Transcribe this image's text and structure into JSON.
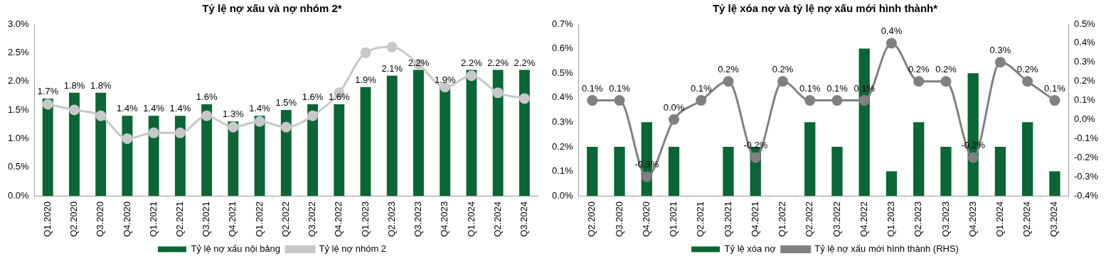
{
  "chart_data": [
    {
      "type": "bar",
      "title": "Tỷ lệ nợ xấu và nợ nhóm 2*",
      "categories": [
        "Q1.2020",
        "Q2.2020",
        "Q3.2020",
        "Q4.2020",
        "Q1.2021",
        "Q2.2021",
        "Q3.2021",
        "Q4.2021",
        "Q1.2022",
        "Q2.2022",
        "Q3.2022",
        "Q4.2022",
        "Q1.2023",
        "Q2.2023",
        "Q3.2023",
        "Q4.2023",
        "Q1.2024",
        "Q2.2024",
        "Q3.2024"
      ],
      "series": [
        {
          "name": "Tỷ lệ nợ xấu nội bảng",
          "color": "#0a6634",
          "values": [
            1.7,
            1.8,
            1.8,
            1.4,
            1.4,
            1.4,
            1.6,
            1.3,
            1.4,
            1.5,
            1.6,
            1.6,
            1.9,
            2.1,
            2.2,
            1.9,
            2.2,
            2.2,
            2.2
          ],
          "value_labels": [
            "1.7%",
            "1.8%",
            "1.8%",
            "1.4%",
            "1.4%",
            "1.4%",
            "1.6%",
            "1.3%",
            "1.4%",
            "1.5%",
            "1.6%",
            "1.6%",
            "1.9%",
            "2.1%",
            "2.2%",
            "1.9%",
            "2.2%",
            "2.2%",
            "2.2%"
          ]
        },
        {
          "name": "Tỷ lệ nợ nhóm 2",
          "type": "line",
          "color": "#c8c8c8",
          "values": [
            1.6,
            1.5,
            1.4,
            1.0,
            1.1,
            1.1,
            1.4,
            1.2,
            1.3,
            1.2,
            1.4,
            1.8,
            2.5,
            2.6,
            2.3,
            1.9,
            2.1,
            1.8,
            1.7
          ]
        }
      ],
      "ylim": [
        0,
        3
      ],
      "yticks": [
        {
          "value": 0,
          "label": "0.0%"
        },
        {
          "value": 0.5,
          "label": "0.5%"
        },
        {
          "value": 1,
          "label": "1.0%"
        },
        {
          "value": 1.5,
          "label": "1.5%"
        },
        {
          "value": 2,
          "label": "2.0%"
        },
        {
          "value": 2.5,
          "label": "2.5%"
        },
        {
          "value": 3,
          "label": "3.0%"
        }
      ],
      "grid": false,
      "legend": "bottom",
      "marker": "circle"
    },
    {
      "type": "bar",
      "title": "Tỷ lệ xóa nợ và tỷ lệ nợ xấu mới hình thành*",
      "categories": [
        "Q2.2020",
        "Q3.2020",
        "Q4.2020",
        "Q1.2021",
        "Q2.2021",
        "Q3.2021",
        "Q4.2021",
        "Q1.2022",
        "Q2.2022",
        "Q3.2022",
        "Q4.2022",
        "Q1.2023",
        "Q2.2023",
        "Q3.2023",
        "Q4.2023",
        "Q1.2024",
        "Q2.2024",
        "Q3.2024"
      ],
      "series": [
        {
          "name": "Tỷ lệ xóa nợ",
          "color": "#0a6634",
          "values": [
            0.2,
            0.2,
            0.3,
            0.2,
            0,
            0.2,
            0.2,
            0,
            0.3,
            0.2,
            0.6,
            0.1,
            0.3,
            0.2,
            0.5,
            0.2,
            0.3,
            0.1
          ]
        },
        {
          "name": "Tỷ lệ nợ xấu mới hình thành (RHS)",
          "type": "line",
          "axis": "y2",
          "color": "#808080",
          "values": [
            0.1,
            0.1,
            -0.3,
            0.0,
            0.1,
            0.2,
            -0.2,
            0.2,
            0.1,
            0.1,
            0.1,
            0.4,
            0.2,
            0.2,
            -0.2,
            0.3,
            0.2,
            0.1
          ],
          "value_labels": [
            "0.1%",
            "0.1%",
            "-0.3%",
            "0.0%",
            "0.1%",
            "0.2%",
            "-0.2%",
            "0.2%",
            "0.1%",
            "0.1%",
            "0.1%",
            "0.4%",
            "0.2%",
            "0.2%",
            "-0.2%",
            "0.3%",
            "0.2%",
            "0.1%"
          ]
        }
      ],
      "ylim": [
        0,
        0.7
      ],
      "yticks": [
        {
          "value": 0,
          "label": "0.0%"
        },
        {
          "value": 0.1,
          "label": "0.1%"
        },
        {
          "value": 0.2,
          "label": "0.2%"
        },
        {
          "value": 0.3,
          "label": "0.3%"
        },
        {
          "value": 0.4,
          "label": "0.4%"
        },
        {
          "value": 0.5,
          "label": "0.5%"
        },
        {
          "value": 0.6,
          "label": "0.6%"
        },
        {
          "value": 0.7,
          "label": "0.7%"
        }
      ],
      "y2lim": [
        -0.4,
        0.5
      ],
      "y2ticks": [
        {
          "value": -0.4,
          "label": "-0.4%"
        },
        {
          "value": -0.3,
          "label": "-0.3%"
        },
        {
          "value": -0.2,
          "label": "-0.2%"
        },
        {
          "value": -0.1,
          "label": "-0.1%"
        },
        {
          "value": 0,
          "label": "0.0%"
        },
        {
          "value": 0.1,
          "label": "0.1%"
        },
        {
          "value": 0.2,
          "label": "0.2%"
        },
        {
          "value": 0.3,
          "label": "0.3%"
        },
        {
          "value": 0.4,
          "label": "0.4%"
        },
        {
          "value": 0.5,
          "label": "0.5%"
        }
      ],
      "grid": false,
      "legend": "bottom",
      "marker": "circle"
    }
  ]
}
